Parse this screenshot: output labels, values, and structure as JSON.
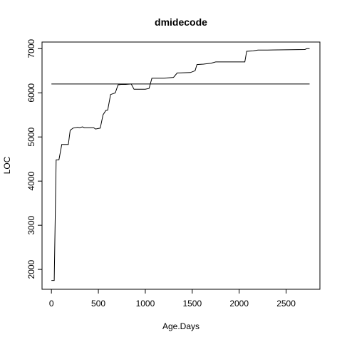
{
  "chart_data": {
    "type": "line",
    "title": "dmidecode",
    "xlabel": "Age.Days",
    "ylabel": "LOC",
    "xlim": [
      -100,
      2860
    ],
    "ylim": [
      1550,
      7150
    ],
    "x_ticks": [
      0,
      500,
      1000,
      1500,
      2000,
      2500
    ],
    "y_ticks": [
      2000,
      3000,
      4000,
      5000,
      6000,
      7000
    ],
    "grid": false,
    "legend": "none",
    "series": [
      {
        "x": [
          0,
          30,
          50,
          80,
          110,
          180,
          200,
          230,
          280,
          300,
          330,
          350,
          400,
          450,
          470,
          520,
          550,
          580,
          600,
          630,
          680,
          710,
          740,
          790,
          850,
          880,
          940,
          1000,
          1040,
          1070,
          1200,
          1300,
          1340,
          1480,
          1530,
          1550,
          1620,
          1660,
          1700,
          1750,
          1800,
          2000,
          2060,
          2080,
          2150,
          2200,
          2300,
          2700,
          2720,
          2750
        ],
        "y": [
          1750,
          1750,
          4480,
          4480,
          4830,
          4830,
          5150,
          5200,
          5220,
          5210,
          5230,
          5210,
          5210,
          5210,
          5180,
          5200,
          5500,
          5600,
          5610,
          5960,
          6000,
          6180,
          6190,
          6190,
          6200,
          6080,
          6080,
          6080,
          6100,
          6330,
          6330,
          6350,
          6450,
          6460,
          6500,
          6640,
          6650,
          6660,
          6670,
          6700,
          6700,
          6700,
          6700,
          6940,
          6950,
          6970,
          6970,
          6980,
          7000,
          7000
        ],
        "color": "#000000"
      }
    ],
    "reference_line": {
      "y": 6200,
      "color": "#000000"
    }
  }
}
